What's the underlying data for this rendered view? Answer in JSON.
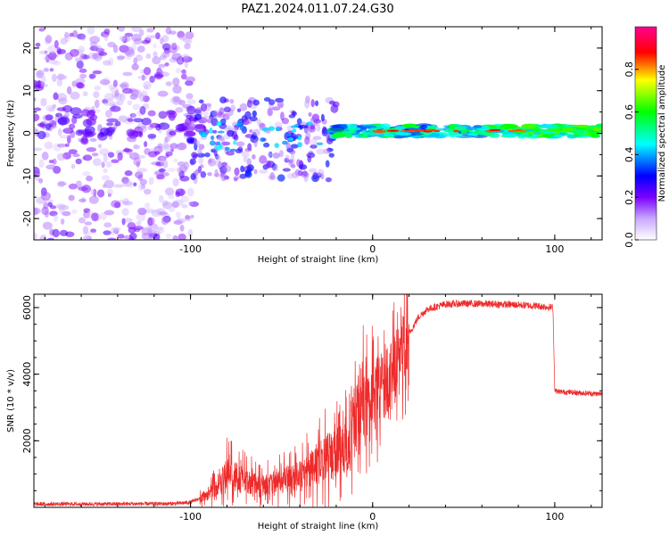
{
  "title": "PAZ1.2024.011.07.24.G30",
  "chart_data": [
    {
      "type": "heatmap",
      "xlabel": "Height of straight line (km)",
      "ylabel": "Frequency (Hz)",
      "xlim": [
        -186,
        126
      ],
      "ylim": [
        -25,
        25
      ],
      "xticks": [
        -100,
        0,
        100
      ],
      "yticks": [
        -20,
        -10,
        0,
        10,
        20
      ],
      "colorbar": {
        "label": "Normalized spectral amplitude",
        "range": [
          0.0,
          1.0
        ],
        "ticks": [
          "0.0",
          "0.2",
          "0.4",
          "0.6",
          "0.8"
        ],
        "colormap": "gist_rainbow",
        "colors": [
          "#ffffff",
          "#7b00ff",
          "#0000ff",
          "#00ffff",
          "#00ff00",
          "#ffff00",
          "#ff0000",
          "#ff0080"
        ]
      },
      "regions": [
        {
          "x": [
            -186,
            -100
          ],
          "description_level": 0.25,
          "freq_spread": [
            -25,
            25
          ]
        },
        {
          "x": [
            -100,
            -20
          ],
          "description_level": 0.35,
          "freq_spread": [
            -12,
            8
          ]
        },
        {
          "x": [
            -20,
            126
          ],
          "description_level": 0.6,
          "freq_center": 0.5
        }
      ]
    },
    {
      "type": "line",
      "xlabel": "Height of straight line (km)",
      "ylabel": "SNR (10 * v/v)",
      "xlim": [
        -186,
        126
      ],
      "ylim": [
        0,
        6400
      ],
      "xticks": [
        -100,
        0,
        100
      ],
      "yticks": [
        2000,
        4000,
        6000
      ],
      "line_color": "#ee2b2b",
      "series": [
        {
          "x": [
            -186,
            -150,
            -110,
            -100,
            -90,
            -85,
            -80,
            -75,
            -70,
            -65,
            -60,
            -55,
            -50,
            -45,
            -40,
            -35,
            -30,
            -25,
            -20,
            -15,
            -12,
            -10,
            -8,
            -5,
            0,
            5,
            10,
            15,
            20,
            25,
            30,
            40,
            50,
            60,
            70,
            80,
            90,
            99,
            100,
            101,
            110,
            120,
            126
          ],
          "values": [
            100,
            100,
            110,
            150,
            400,
            700,
            1000,
            900,
            800,
            700,
            650,
            700,
            800,
            900,
            1000,
            1100,
            1300,
            1500,
            1600,
            1800,
            2000,
            2300,
            2800,
            3000,
            3300,
            3600,
            3900,
            4500,
            5200,
            5700,
            5950,
            6100,
            6120,
            6110,
            6100,
            6080,
            6050,
            6000,
            3550,
            3480,
            3450,
            3420,
            3400
          ]
        }
      ]
    }
  ]
}
